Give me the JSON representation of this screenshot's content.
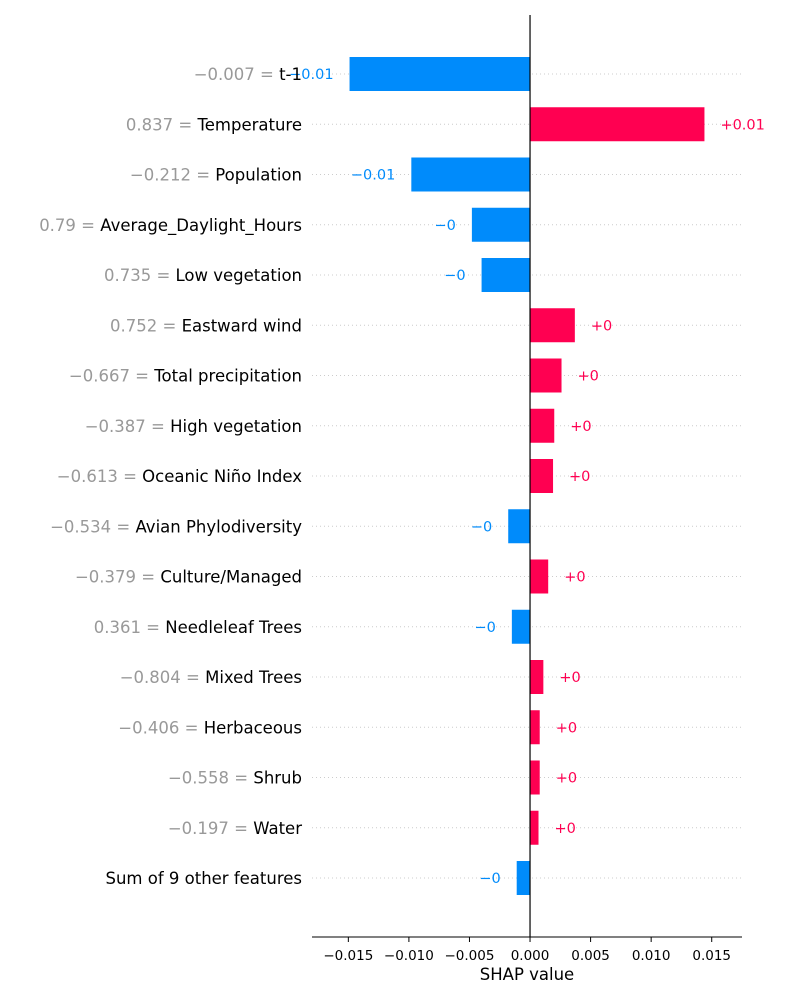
{
  "chart_data": {
    "type": "bar",
    "orientation": "horizontal",
    "xlabel": "SHAP value",
    "xlim": [
      -0.018,
      0.0175
    ],
    "xticks": [
      -0.015,
      -0.01,
      -0.005,
      0.0,
      0.005,
      0.01,
      0.015
    ],
    "xtick_labels": [
      "−0.015",
      "−0.010",
      "−0.005",
      "0.000",
      "0.005",
      "0.010",
      "0.015"
    ],
    "grid": "horizontal-dotted",
    "colors": {
      "positive": "#ff0051",
      "negative": "#008bfb",
      "text_value": "#999999"
    },
    "bars": [
      {
        "feature_value": "−0.007 =",
        "feature": "t-1",
        "shap": -0.0149,
        "label": "−0.01"
      },
      {
        "feature_value": "0.837 =",
        "feature": "Temperature",
        "shap": 0.0144,
        "label": "+0.01"
      },
      {
        "feature_value": "−0.212 =",
        "feature": "Population",
        "shap": -0.0098,
        "label": "−0.01"
      },
      {
        "feature_value": "0.79 =",
        "feature": "Average_Daylight_Hours",
        "shap": -0.0048,
        "label": "−0"
      },
      {
        "feature_value": "0.735 =",
        "feature": "Low vegetation",
        "shap": -0.004,
        "label": "−0"
      },
      {
        "feature_value": "0.752 =",
        "feature": "Eastward wind",
        "shap": 0.0037,
        "label": "+0"
      },
      {
        "feature_value": "−0.667 =",
        "feature": "Total precipitation",
        "shap": 0.0026,
        "label": "+0"
      },
      {
        "feature_value": "−0.387 =",
        "feature": "High vegetation",
        "shap": 0.002,
        "label": "+0"
      },
      {
        "feature_value": "−0.613 =",
        "feature": "Oceanic Niño Index",
        "shap": 0.0019,
        "label": "+0"
      },
      {
        "feature_value": "−0.534 =",
        "feature": "Avian Phylodiversity",
        "shap": -0.0018,
        "label": "−0"
      },
      {
        "feature_value": "−0.379 =",
        "feature": "Culture/Managed",
        "shap": 0.0015,
        "label": "+0"
      },
      {
        "feature_value": "0.361 =",
        "feature": "Needleleaf Trees",
        "shap": -0.0015,
        "label": "−0"
      },
      {
        "feature_value": "−0.804 =",
        "feature": "Mixed Trees",
        "shap": 0.0011,
        "label": "+0"
      },
      {
        "feature_value": "−0.406 =",
        "feature": "Herbaceous",
        "shap": 0.0008,
        "label": "+0"
      },
      {
        "feature_value": "−0.558 =",
        "feature": "Shrub",
        "shap": 0.0008,
        "label": "+0"
      },
      {
        "feature_value": "−0.197 =",
        "feature": "Water",
        "shap": 0.0007,
        "label": "+0"
      },
      {
        "feature_value": "",
        "feature": "Sum of 9 other features",
        "shap": -0.0011,
        "label": "−0"
      }
    ]
  }
}
